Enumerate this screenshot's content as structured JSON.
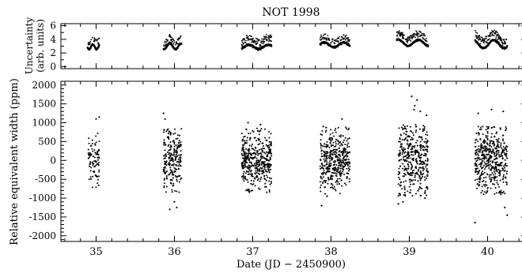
{
  "chart_data": [
    {
      "panel": "top",
      "type": "scatter",
      "title": "NOT 1998",
      "ylabel": [
        "Uncertainty",
        "(arb. units)"
      ],
      "xlim": [
        34.55,
        40.5
      ],
      "ylim": [
        -0.3,
        6.3
      ],
      "yticks": [
        0,
        2,
        4,
        6
      ],
      "xticks": [
        35,
        36,
        37,
        38,
        39,
        40
      ],
      "show_xtick_labels": false,
      "grid": false,
      "nights": [
        {
          "start": 34.89,
          "end": 35.04,
          "base": 2.9,
          "amp": 0.35,
          "upper_frac": 0.3,
          "upper_offset": 0.9
        },
        {
          "start": 35.86,
          "end": 36.09,
          "base": 3.0,
          "amp": 0.45,
          "upper_frac": 0.3,
          "upper_offset": 0.8
        },
        {
          "start": 36.86,
          "end": 37.24,
          "base": 2.9,
          "amp": 0.3,
          "upper_frac": 0.45,
          "upper_offset": 1.0
        },
        {
          "start": 37.86,
          "end": 38.24,
          "base": 3.2,
          "amp": 0.35,
          "upper_frac": 0.35,
          "upper_offset": 0.8
        },
        {
          "start": 38.84,
          "end": 39.24,
          "base": 3.5,
          "amp": 0.45,
          "upper_frac": 0.4,
          "upper_offset": 0.9
        },
        {
          "start": 39.84,
          "end": 40.25,
          "base": 3.3,
          "amp": 0.6,
          "upper_frac": 0.45,
          "upper_offset": 1.0
        }
      ]
    },
    {
      "panel": "bottom",
      "type": "scatter",
      "xlabel": "Date (JD − 2450900)",
      "ylabel": "Relative equivalent width (ppm)",
      "xlim": [
        34.55,
        40.5
      ],
      "ylim": [
        -2150,
        2100
      ],
      "yticks": [
        -2000,
        -1500,
        -1000,
        -500,
        0,
        500,
        1000,
        1500,
        2000
      ],
      "xticks": [
        35,
        36,
        37,
        38,
        39,
        40
      ],
      "grid": false,
      "nights": [
        {
          "start": 34.9,
          "end": 35.04,
          "n": 90,
          "sigma": 360,
          "clip": 720
        },
        {
          "start": 35.86,
          "end": 36.09,
          "n": 230,
          "sigma": 420,
          "clip": 850
        },
        {
          "start": 36.86,
          "end": 37.24,
          "n": 440,
          "sigma": 360,
          "clip": 850
        },
        {
          "start": 37.86,
          "end": 38.24,
          "n": 420,
          "sigma": 380,
          "clip": 900
        },
        {
          "start": 38.86,
          "end": 39.24,
          "n": 400,
          "sigma": 480,
          "clip": 950
        },
        {
          "start": 39.84,
          "end": 40.25,
          "n": 470,
          "sigma": 430,
          "clip": 900
        }
      ],
      "outliers": [
        [
          35.04,
          1150
        ],
        [
          35.0,
          1100
        ],
        [
          35.86,
          1250
        ],
        [
          35.88,
          1100
        ],
        [
          35.94,
          -1300
        ],
        [
          36.03,
          -1250
        ],
        [
          36.0,
          -1100
        ],
        [
          36.94,
          1000
        ],
        [
          37.1,
          950
        ],
        [
          36.94,
          -800
        ],
        [
          37.88,
          -1200
        ],
        [
          37.9,
          900
        ],
        [
          37.95,
          -950
        ],
        [
          38.14,
          1100
        ],
        [
          39.03,
          1700
        ],
        [
          39.1,
          1600
        ],
        [
          39.07,
          1450
        ],
        [
          39.14,
          1300
        ],
        [
          39.22,
          1200
        ],
        [
          39.06,
          1350
        ],
        [
          38.86,
          -1150
        ],
        [
          38.92,
          -1100
        ],
        [
          39.2,
          -1000
        ],
        [
          39.88,
          1250
        ],
        [
          40.2,
          1300
        ],
        [
          40.05,
          1350
        ],
        [
          39.84,
          -1650
        ],
        [
          40.25,
          -1450
        ],
        [
          40.22,
          -1250
        ],
        [
          40.23,
          800
        ],
        [
          40.17,
          -900
        ]
      ]
    }
  ]
}
